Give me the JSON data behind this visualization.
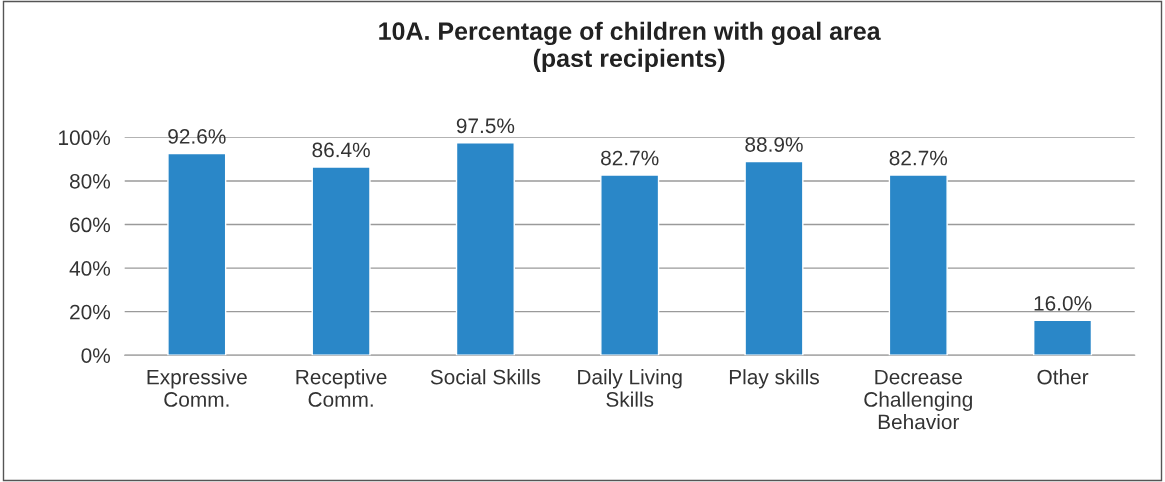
{
  "chart_data": {
    "type": "bar",
    "title": "10A. Percentage of children with goal area\n(past recipients)",
    "categories": [
      "Expressive\nComm.",
      "Receptive\nComm.",
      "Social Skills",
      "Daily Living\nSkills",
      "Play skills",
      "Decrease\nChallenging\nBehavior",
      "Other"
    ],
    "values": [
      92.6,
      86.4,
      97.5,
      82.7,
      88.9,
      82.7,
      16.0
    ],
    "value_labels": [
      "92.6%",
      "86.4%",
      "97.5%",
      "82.7%",
      "88.9%",
      "82.7%",
      "16.0%"
    ],
    "color": "#2a87c8",
    "ylim": [
      0,
      100
    ],
    "yticks": [
      {
        "value": 0,
        "label": "0%"
      },
      {
        "value": 20,
        "label": "20%"
      },
      {
        "value": 40,
        "label": "40%"
      },
      {
        "value": 60,
        "label": "60%"
      },
      {
        "value": 80,
        "label": "80%"
      },
      {
        "value": 100,
        "label": "100%"
      }
    ],
    "grid": "y"
  }
}
